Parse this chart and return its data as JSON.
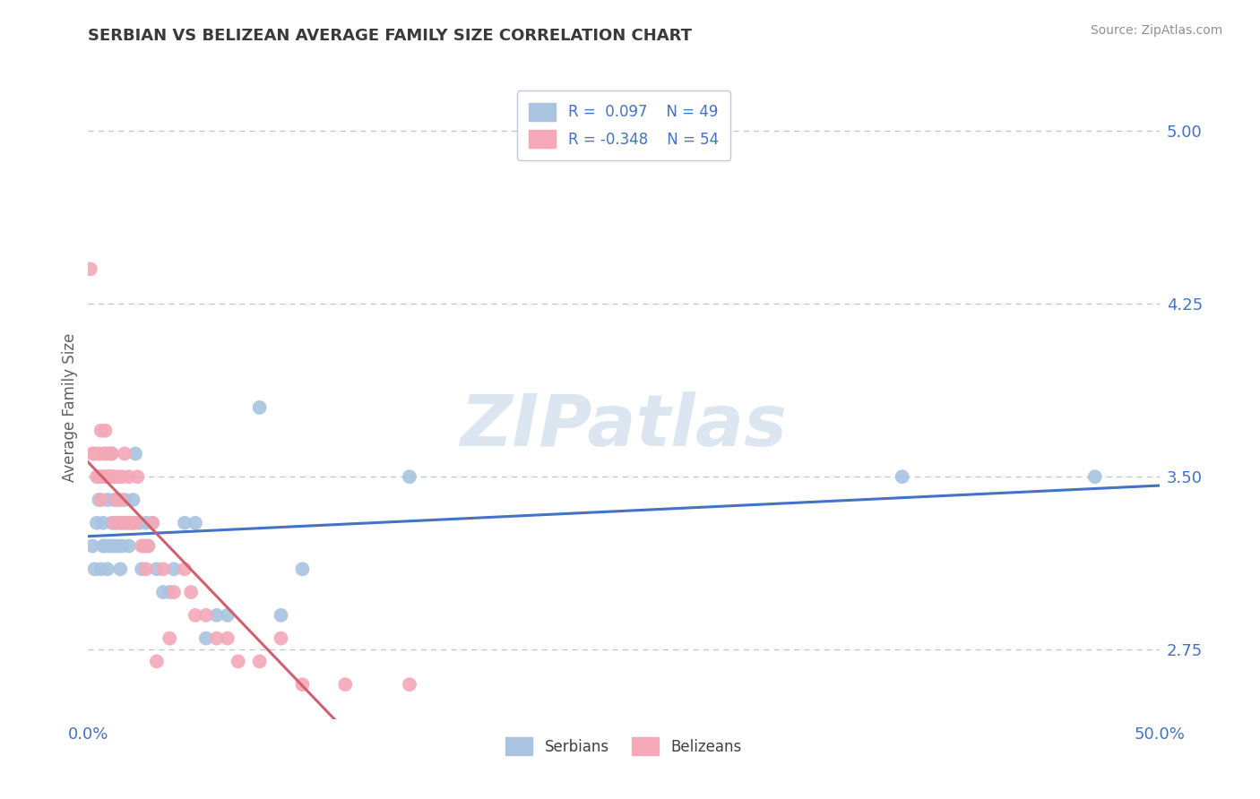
{
  "title": "SERBIAN VS BELIZEAN AVERAGE FAMILY SIZE CORRELATION CHART",
  "source": "Source: ZipAtlas.com",
  "ylabel": "Average Family Size",
  "xlim": [
    0.0,
    0.5
  ],
  "ylim": [
    2.45,
    5.15
  ],
  "legend_serbian": "R =  0.097    N = 49",
  "legend_belizean": "R = -0.348    N = 54",
  "legend_bottom_serbian": "Serbians",
  "legend_bottom_belizean": "Belizeans",
  "yright_labels": [
    "5.00",
    "4.25",
    "3.50",
    "2.75"
  ],
  "yright_values": [
    5.0,
    4.25,
    3.5,
    2.75
  ],
  "xtick_labels": [
    "0.0%",
    "50.0%"
  ],
  "xtick_values": [
    0.0,
    0.5
  ],
  "serbian_color": "#a8c4e0",
  "belizean_color": "#f4a8b8",
  "line_serbian_color": "#4472c4",
  "line_belizean_solid_color": "#d06070",
  "line_belizean_dash_color": "#b8c4cc",
  "grid_color": "#b8c4d4",
  "title_color": "#3a3a3a",
  "axis_label_color": "#4472c4",
  "ylabel_color": "#606060",
  "watermark_color": "#dce6f0",
  "serbian_x": [
    0.002,
    0.003,
    0.004,
    0.005,
    0.006,
    0.006,
    0.007,
    0.007,
    0.008,
    0.008,
    0.009,
    0.009,
    0.01,
    0.01,
    0.011,
    0.011,
    0.012,
    0.012,
    0.013,
    0.014,
    0.015,
    0.015,
    0.016,
    0.017,
    0.018,
    0.019,
    0.02,
    0.021,
    0.022,
    0.024,
    0.025,
    0.027,
    0.028,
    0.03,
    0.032,
    0.035,
    0.038,
    0.04,
    0.045,
    0.05,
    0.055,
    0.06,
    0.065,
    0.08,
    0.09,
    0.1,
    0.15,
    0.38,
    0.47
  ],
  "serbian_y": [
    3.2,
    3.1,
    3.3,
    3.4,
    3.5,
    3.1,
    3.2,
    3.3,
    3.6,
    3.2,
    3.4,
    3.1,
    3.5,
    3.2,
    3.3,
    3.6,
    3.2,
    3.4,
    3.3,
    3.2,
    3.1,
    3.3,
    3.2,
    3.4,
    3.3,
    3.2,
    3.3,
    3.4,
    3.6,
    3.3,
    3.1,
    3.3,
    3.2,
    3.3,
    3.1,
    3.0,
    3.0,
    3.1,
    3.3,
    3.3,
    2.8,
    2.9,
    2.9,
    3.8,
    2.9,
    3.1,
    3.5,
    3.5,
    3.5
  ],
  "belizean_x": [
    0.001,
    0.002,
    0.003,
    0.004,
    0.005,
    0.005,
    0.006,
    0.006,
    0.007,
    0.007,
    0.008,
    0.008,
    0.009,
    0.009,
    0.01,
    0.01,
    0.011,
    0.011,
    0.012,
    0.012,
    0.013,
    0.014,
    0.015,
    0.015,
    0.016,
    0.016,
    0.017,
    0.018,
    0.019,
    0.02,
    0.021,
    0.022,
    0.023,
    0.025,
    0.026,
    0.027,
    0.028,
    0.03,
    0.032,
    0.035,
    0.038,
    0.04,
    0.045,
    0.048,
    0.05,
    0.055,
    0.06,
    0.065,
    0.07,
    0.08,
    0.09,
    0.1,
    0.12,
    0.15
  ],
  "belizean_y": [
    4.4,
    3.6,
    3.6,
    3.5,
    3.5,
    3.6,
    3.4,
    3.7,
    3.5,
    3.6,
    3.7,
    3.5,
    3.6,
    3.5,
    3.5,
    3.6,
    3.5,
    3.6,
    3.3,
    3.5,
    3.4,
    3.5,
    3.3,
    3.4,
    3.5,
    3.3,
    3.6,
    3.3,
    3.5,
    3.3,
    3.3,
    3.3,
    3.5,
    3.2,
    3.2,
    3.1,
    3.2,
    3.3,
    2.7,
    3.1,
    2.8,
    3.0,
    3.1,
    3.0,
    2.9,
    2.9,
    2.8,
    2.8,
    2.7,
    2.7,
    2.8,
    2.6,
    2.6,
    2.6
  ]
}
